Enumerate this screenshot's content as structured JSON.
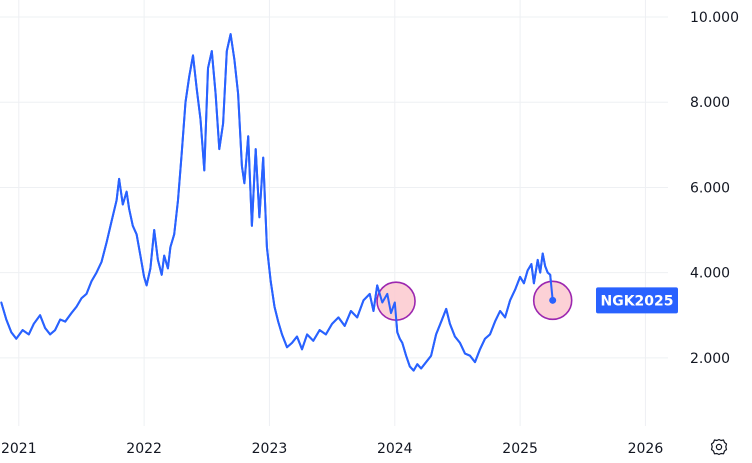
{
  "chart_data": {
    "type": "line",
    "xlim": [
      2020.85,
      2026.18
    ],
    "ylim": [
      0.4,
      10.4
    ],
    "x_ticks": [
      "2021",
      "2022",
      "2023",
      "2024",
      "2025",
      "2026"
    ],
    "y_ticks": [
      "2.000",
      "4.000",
      "6.000",
      "8.000",
      "10.000"
    ],
    "series": [
      {
        "name": "NGK2025",
        "color": "#2962ff",
        "x": [
          2020.86,
          2020.9,
          2020.94,
          2020.98,
          2021.03,
          2021.08,
          2021.12,
          2021.17,
          2021.21,
          2021.25,
          2021.29,
          2021.33,
          2021.37,
          2021.42,
          2021.46,
          2021.5,
          2021.54,
          2021.58,
          2021.62,
          2021.66,
          2021.7,
          2021.74,
          2021.78,
          2021.8,
          2021.83,
          2021.86,
          2021.88,
          2021.91,
          2021.94,
          2021.97,
          2022.0,
          2022.02,
          2022.05,
          2022.08,
          2022.11,
          2022.14,
          2022.16,
          2022.19,
          2022.21,
          2022.24,
          2022.27,
          2022.3,
          2022.33,
          2022.36,
          2022.39,
          2022.42,
          2022.45,
          2022.48,
          2022.51,
          2022.54,
          2022.57,
          2022.6,
          2022.63,
          2022.66,
          2022.69,
          2022.72,
          2022.75,
          2022.78,
          2022.8,
          2022.83,
          2022.86,
          2022.89,
          2022.92,
          2022.95,
          2022.98,
          2023.01,
          2023.04,
          2023.07,
          2023.1,
          2023.14,
          2023.18,
          2023.22,
          2023.26,
          2023.3,
          2023.35,
          2023.4,
          2023.45,
          2023.5,
          2023.55,
          2023.6,
          2023.65,
          2023.7,
          2023.75,
          2023.8,
          2023.83,
          2023.86,
          2023.9,
          2023.94,
          2023.97,
          2024.0,
          2024.02,
          2024.04,
          2024.06,
          2024.09,
          2024.12,
          2024.15,
          2024.18,
          2024.21,
          2024.25,
          2024.29,
          2024.33,
          2024.37,
          2024.41,
          2024.44,
          2024.48,
          2024.52,
          2024.56,
          2024.6,
          2024.64,
          2024.68,
          2024.72,
          2024.76,
          2024.8,
          2024.84,
          2024.88,
          2024.92,
          2024.96,
          2025.0,
          2025.03,
          2025.06,
          2025.09,
          2025.11,
          2025.14,
          2025.16,
          2025.18,
          2025.2,
          2025.22,
          2025.24,
          2025.26
        ],
        "values": [
          3.3,
          2.9,
          2.6,
          2.45,
          2.65,
          2.55,
          2.8,
          3.0,
          2.7,
          2.55,
          2.65,
          2.9,
          2.85,
          3.05,
          3.2,
          3.4,
          3.5,
          3.8,
          4.0,
          4.25,
          4.7,
          5.2,
          5.7,
          6.2,
          5.6,
          5.9,
          5.5,
          5.1,
          4.9,
          4.4,
          3.9,
          3.7,
          4.1,
          5.0,
          4.3,
          3.95,
          4.4,
          4.1,
          4.6,
          4.9,
          5.7,
          6.8,
          8.0,
          8.6,
          9.1,
          8.3,
          7.6,
          6.4,
          8.8,
          9.2,
          8.2,
          6.9,
          7.5,
          9.2,
          9.6,
          9.0,
          8.2,
          6.5,
          6.1,
          7.2,
          5.1,
          6.9,
          5.3,
          6.7,
          4.6,
          3.8,
          3.2,
          2.85,
          2.55,
          2.25,
          2.35,
          2.5,
          2.2,
          2.55,
          2.4,
          2.65,
          2.55,
          2.8,
          2.95,
          2.75,
          3.1,
          2.95,
          3.35,
          3.5,
          3.1,
          3.7,
          3.3,
          3.5,
          3.05,
          3.3,
          2.6,
          2.45,
          2.35,
          2.05,
          1.8,
          1.7,
          1.85,
          1.75,
          1.9,
          2.05,
          2.55,
          2.85,
          3.15,
          2.8,
          2.5,
          2.35,
          2.1,
          2.05,
          1.9,
          2.2,
          2.45,
          2.55,
          2.85,
          3.1,
          2.95,
          3.35,
          3.6,
          3.9,
          3.75,
          4.05,
          4.2,
          3.75,
          4.3,
          4.0,
          4.45,
          4.15,
          4.0,
          3.95,
          3.35
        ]
      }
    ],
    "highlights": [
      {
        "x": 2024.01,
        "y": 3.33,
        "fill": "#fbc9cf",
        "stroke": "#9c27b0"
      },
      {
        "x": 2025.26,
        "y": 3.35,
        "fill": "#fbc9cf",
        "stroke": "#9c27b0"
      }
    ],
    "last_value_label": "NGK2025",
    "grid": true
  }
}
